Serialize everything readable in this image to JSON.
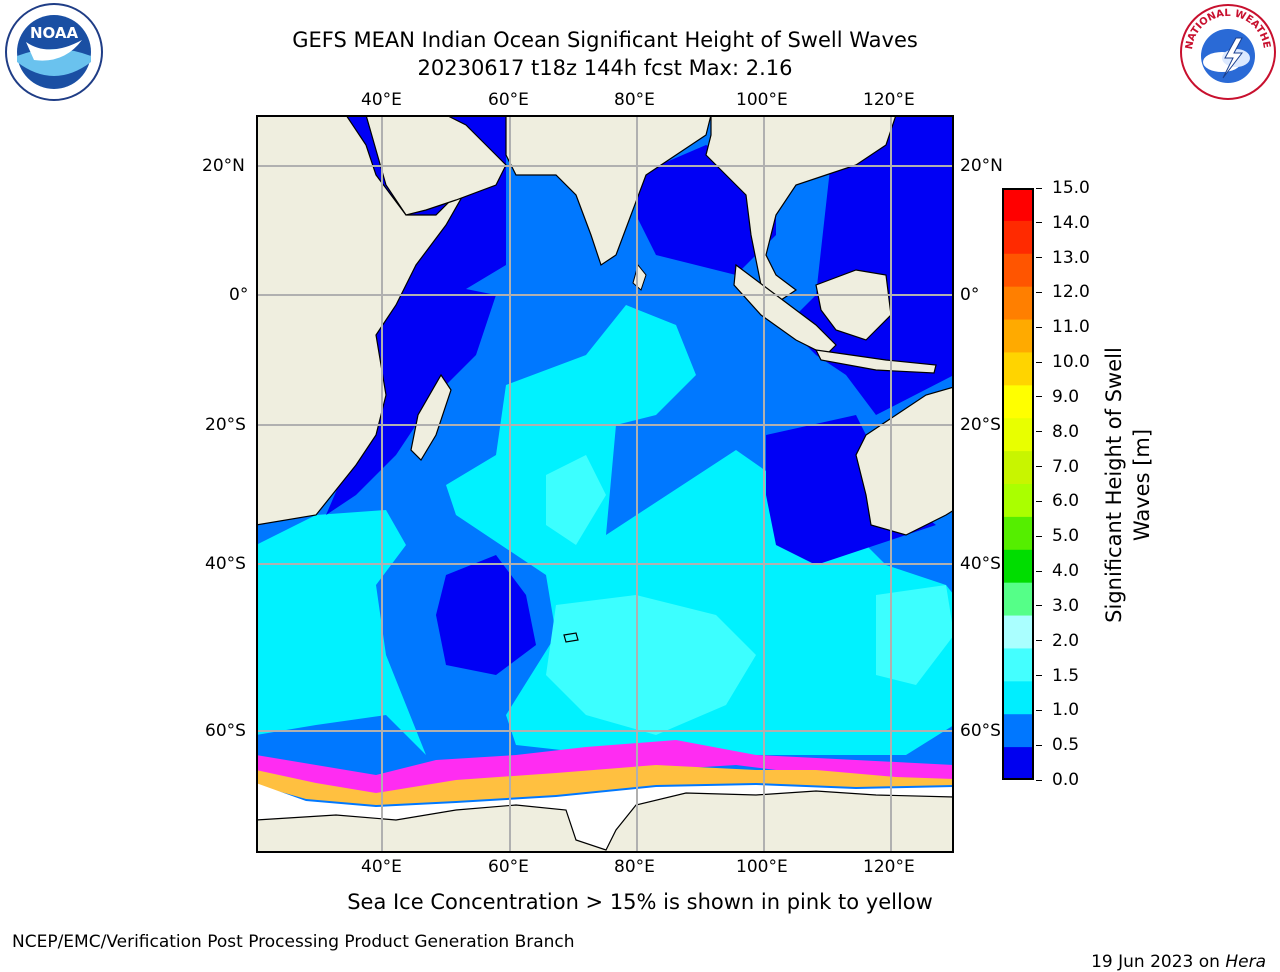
{
  "title": {
    "line1": "GEFS MEAN Indian Ocean Significant Height of Swell Waves",
    "line2": "20230617 t18z 144h fcst   Max: 2.16"
  },
  "map": {
    "lon_labels": [
      "40°E",
      "60°E",
      "80°E",
      "100°E",
      "120°E"
    ],
    "lat_labels": [
      "20°N",
      "0°",
      "20°S",
      "40°S",
      "60°S"
    ],
    "colors": {
      "land": "#efeedf",
      "sea_ice": "#ffffff",
      "grid": "#b0b0b0",
      "ocean_0_05": "#0000f5",
      "ocean_05_1": "#0078ff",
      "ocean_1_15": "#00f2ff",
      "ocean_15_2": "#3cffff",
      "ice_edge_pink": "#ff2cf2",
      "ice_edge_yellow": "#ffc040"
    }
  },
  "colorbar": {
    "label_line1": "Significant Height of Swell",
    "label_line2": "Waves [m]",
    "ticks": [
      "15.0",
      "14.0",
      "13.0",
      "12.0",
      "11.0",
      "10.0",
      "9.0",
      "8.0",
      "7.0",
      "6.0",
      "5.0",
      "4.0",
      "3.0",
      "2.0",
      "1.5",
      "1.0",
      "0.5",
      "0.0"
    ],
    "segment_colors": [
      "#ff0000",
      "#ff2a00",
      "#ff5500",
      "#ff7f00",
      "#ffaa00",
      "#ffd400",
      "#ffff00",
      "#e8ff00",
      "#c8f500",
      "#aaff00",
      "#55ee00",
      "#00dd00",
      "#55ff88",
      "#aaffff",
      "#44ffff",
      "#00eeff",
      "#0077ff",
      "#0000f0"
    ]
  },
  "caption": "Sea Ice Concentration > 15% is shown in pink to yellow",
  "footer": {
    "left": "NCEP/EMC/Verification Post Processing Product Generation Branch",
    "right_date": "19 Jun 2023 on ",
    "right_host": "Hera"
  },
  "logos": {
    "noaa_text": "NOAA",
    "nws_text": "NATIONAL WEATHER SERVICE"
  }
}
